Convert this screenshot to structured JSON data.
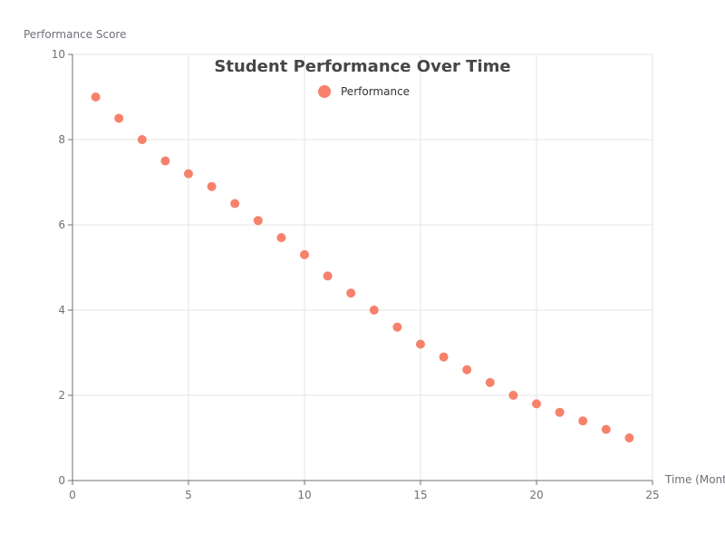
{
  "chart_data": {
    "type": "scatter",
    "title": "Student Performance Over Time",
    "xlabel": "Time (Months)",
    "ylabel": "Performance Score",
    "xlim": [
      0,
      25
    ],
    "ylim": [
      0,
      10
    ],
    "xticks": [
      0,
      5,
      10,
      15,
      20,
      25
    ],
    "yticks": [
      0,
      2,
      4,
      6,
      8,
      10
    ],
    "grid": true,
    "legend_position": "top-center",
    "series": [
      {
        "name": "Performance",
        "color": "#f7816b",
        "x": [
          1,
          2,
          3,
          4,
          5,
          6,
          7,
          8,
          9,
          10,
          11,
          12,
          13,
          14,
          15,
          16,
          17,
          18,
          19,
          20,
          21,
          22,
          23,
          24
        ],
        "y": [
          9.0,
          8.5,
          8.0,
          7.5,
          7.2,
          6.9,
          6.5,
          6.1,
          5.7,
          5.3,
          4.8,
          4.4,
          4.0,
          3.6,
          3.2,
          2.9,
          2.6,
          2.3,
          2.0,
          1.8,
          1.6,
          1.4,
          1.2,
          1.0
        ]
      }
    ]
  }
}
